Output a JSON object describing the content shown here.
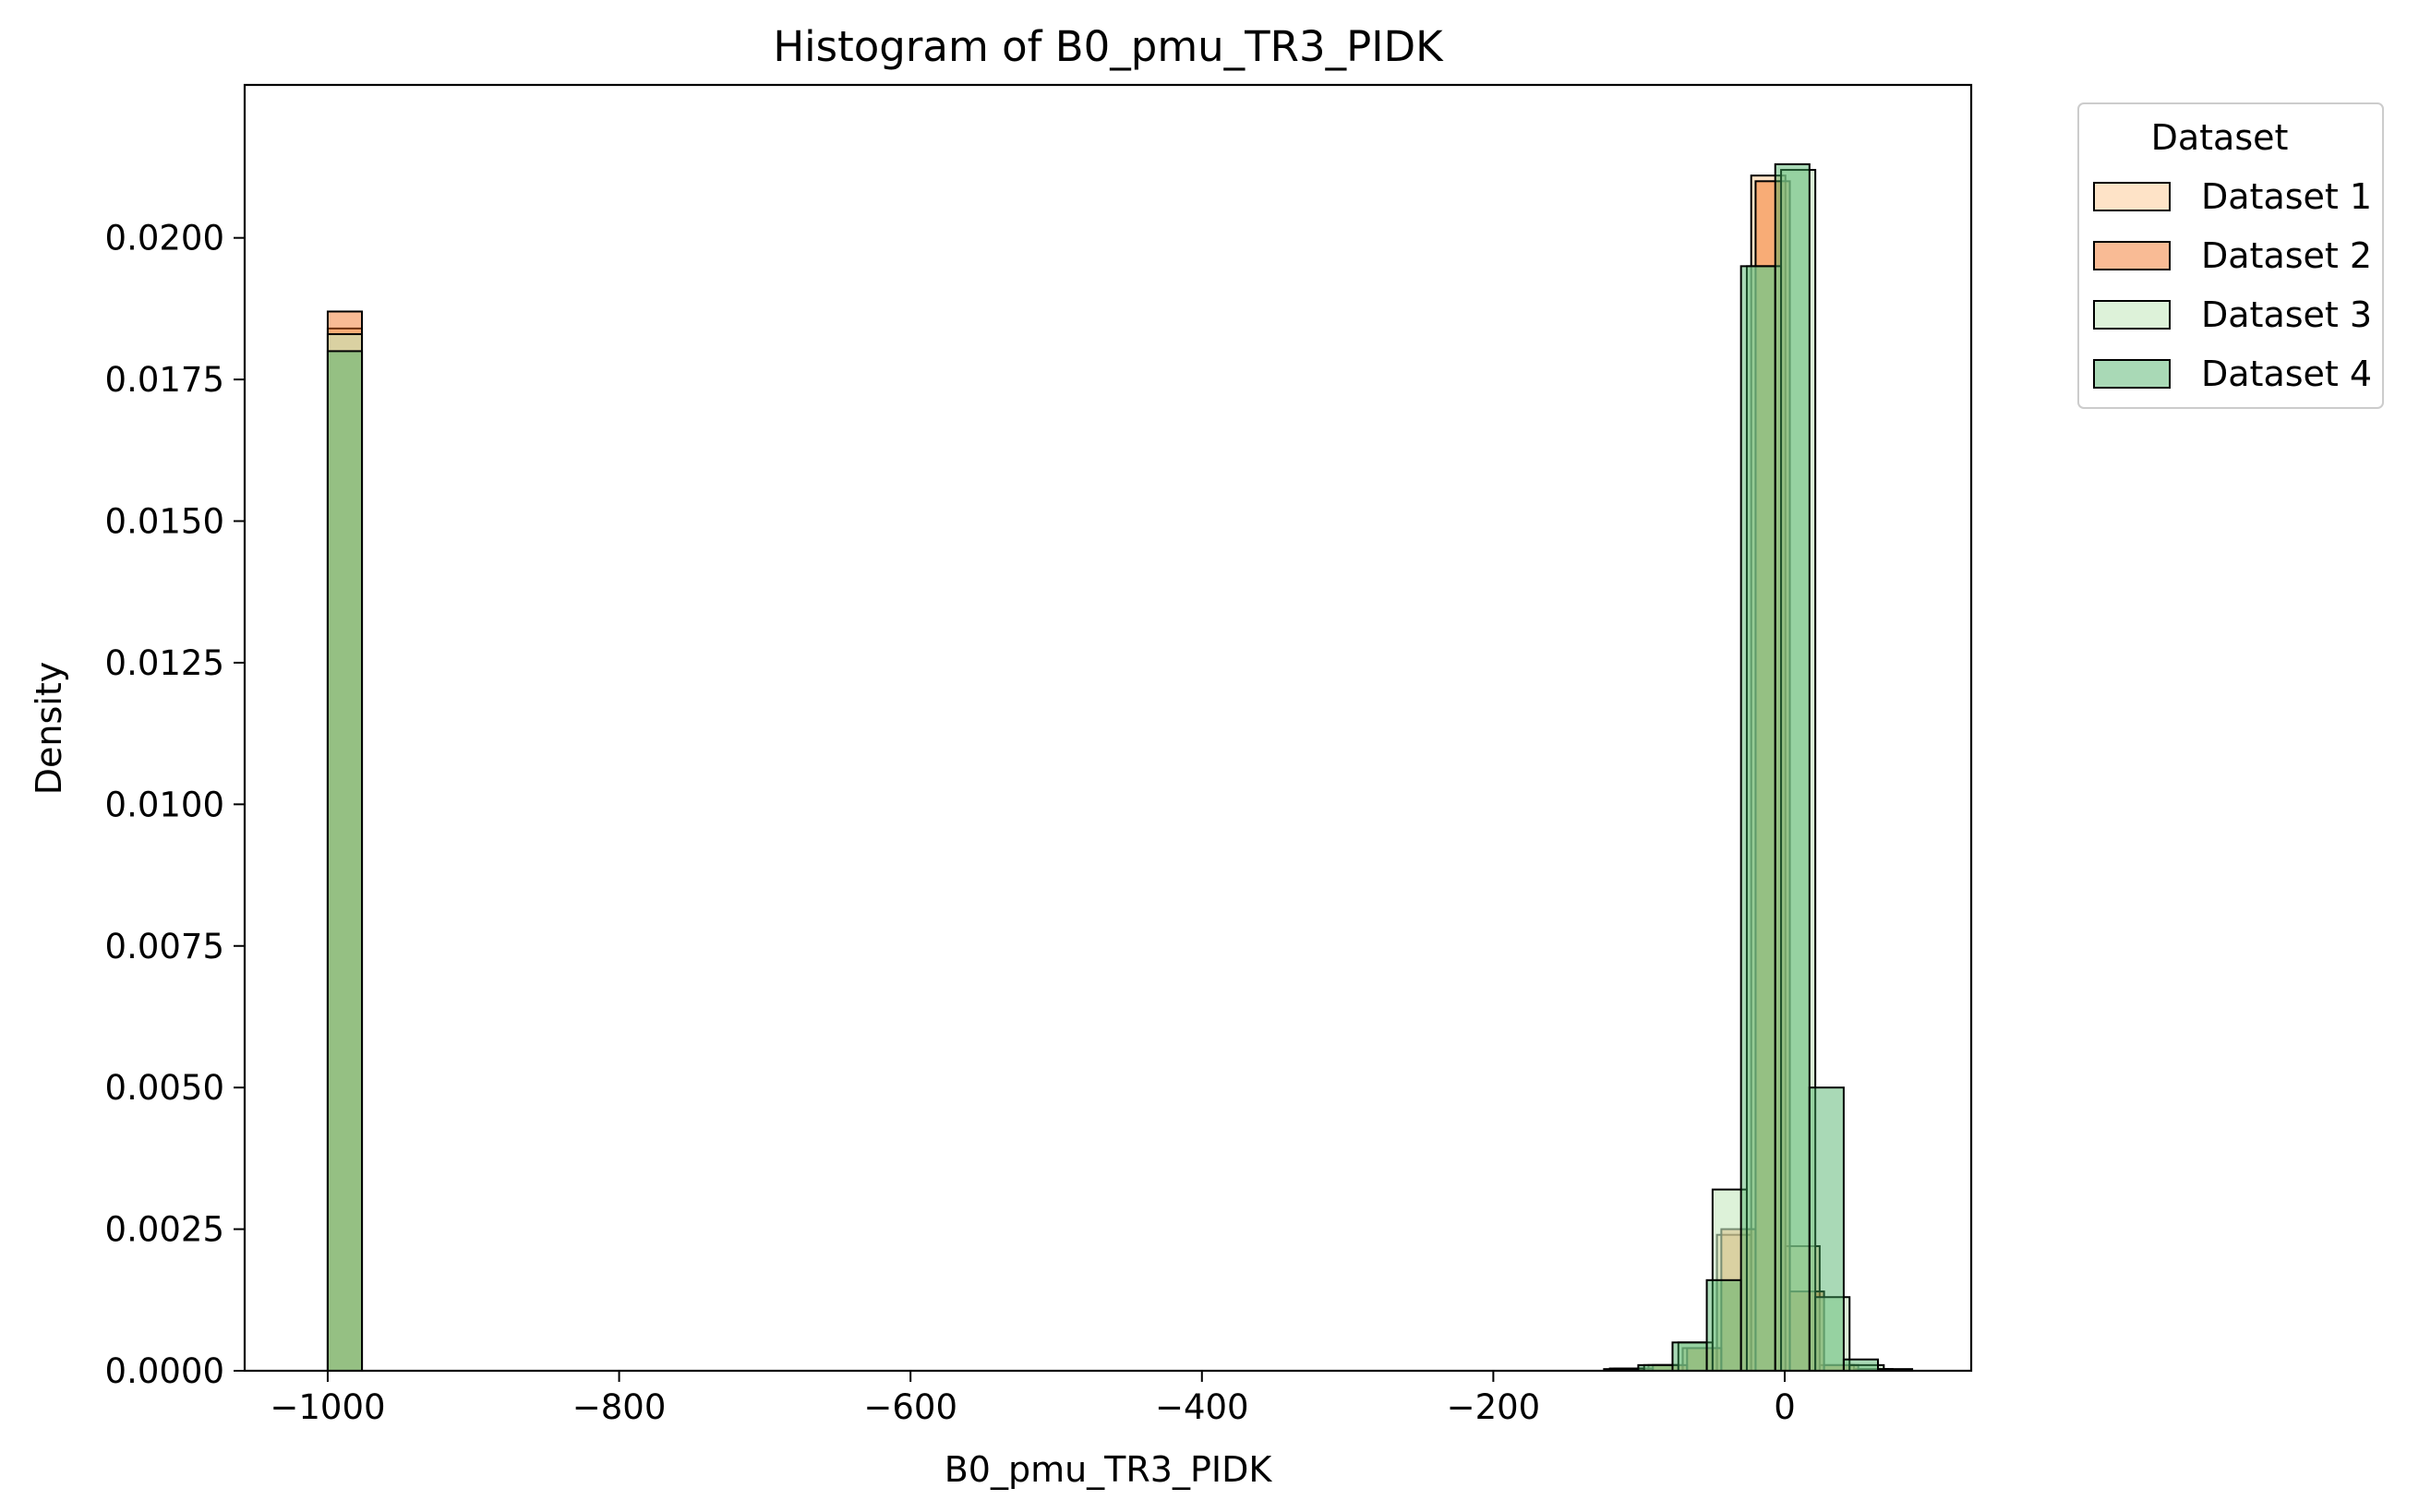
{
  "chart_data": {
    "type": "histogram",
    "title": "Histogram of B0_pmu_TR3_PIDK",
    "xlabel": "B0_pmu_TR3_PIDK",
    "ylabel": "Density",
    "xlim": [
      -1057,
      128
    ],
    "ylim": [
      0,
      0.0227
    ],
    "xticks": [
      -1000,
      -800,
      -600,
      -400,
      -200,
      0
    ],
    "xtick_labels": [
      "−1000",
      "−800",
      "−600",
      "−400",
      "−200",
      "0"
    ],
    "yticks": [
      0,
      0.0025,
      0.005,
      0.0075,
      0.01,
      0.0125,
      0.015,
      0.0175,
      0.02
    ],
    "ytick_labels": [
      "0.0000",
      "0.0025",
      "0.0050",
      "0.0075",
      "0.0100",
      "0.0125",
      "0.0150",
      "0.0175",
      "0.0200"
    ],
    "grid": false,
    "legend": {
      "title": "Dataset",
      "placement": "outside-top-right"
    },
    "series": [
      {
        "name": "Dataset 1",
        "color": "#fdd0a2",
        "alpha": 0.6,
        "bins": [
          {
            "x0": -1000,
            "x1": -976.5,
            "y": 0.0184
          },
          {
            "x0": -117,
            "x1": -93.5,
            "y": 4e-05
          },
          {
            "x0": -93.5,
            "x1": -70,
            "y": 0.0001
          },
          {
            "x0": -70,
            "x1": -46.5,
            "y": 0.0004
          },
          {
            "x0": -46.5,
            "x1": -23,
            "y": 0.0024
          },
          {
            "x0": -23,
            "x1": 0.5,
            "y": 0.0211
          },
          {
            "x0": 0.5,
            "x1": 24,
            "y": 0.0022
          },
          {
            "x0": 24,
            "x1": 47.5,
            "y": 0.0001
          },
          {
            "x0": 47.5,
            "x1": 71,
            "y": 3e-05
          }
        ]
      },
      {
        "name": "Dataset 2",
        "color": "#f16913",
        "alpha": 0.45,
        "bins": [
          {
            "x0": -1000,
            "x1": -976.5,
            "y": 0.0187
          },
          {
            "x0": -114,
            "x1": -90.5,
            "y": 4e-05
          },
          {
            "x0": -90.5,
            "x1": -67,
            "y": 0.0001
          },
          {
            "x0": -67,
            "x1": -43.5,
            "y": 0.0004
          },
          {
            "x0": -43.5,
            "x1": -20,
            "y": 0.0025
          },
          {
            "x0": -20,
            "x1": 3.5,
            "y": 0.021
          },
          {
            "x0": 3.5,
            "x1": 27,
            "y": 0.0014
          },
          {
            "x0": 27,
            "x1": 50.5,
            "y": 0.0001
          },
          {
            "x0": 50.5,
            "x1": 74,
            "y": 3e-05
          }
        ]
      },
      {
        "name": "Dataset 3",
        "color": "#c7e9c0",
        "alpha": 0.6,
        "bins": [
          {
            "x0": -1000,
            "x1": -976.5,
            "y": 0.0183
          },
          {
            "x0": -120,
            "x1": -96.5,
            "y": 4e-05
          },
          {
            "x0": -96.5,
            "x1": -73,
            "y": 0.0001
          },
          {
            "x0": -73,
            "x1": -49.5,
            "y": 0.0005
          },
          {
            "x0": -49.5,
            "x1": -26,
            "y": 0.0032
          },
          {
            "x0": -26,
            "x1": -2.5,
            "y": 0.0195
          },
          {
            "x0": -2.5,
            "x1": 21,
            "y": 0.0212
          },
          {
            "x0": 21,
            "x1": 44.5,
            "y": 0.0013
          },
          {
            "x0": 44.5,
            "x1": 68,
            "y": 0.0001
          }
        ]
      },
      {
        "name": "Dataset 4",
        "color": "#41ab5d",
        "alpha": 0.45,
        "bins": [
          {
            "x0": -1000,
            "x1": -976.5,
            "y": 0.018
          },
          {
            "x0": -124,
            "x1": -100.5,
            "y": 3e-05
          },
          {
            "x0": -100.5,
            "x1": -77,
            "y": 0.0001
          },
          {
            "x0": -77,
            "x1": -53.5,
            "y": 0.0005
          },
          {
            "x0": -53.5,
            "x1": -30,
            "y": 0.0016
          },
          {
            "x0": -30,
            "x1": -6.5,
            "y": 0.0195
          },
          {
            "x0": -6.5,
            "x1": 17,
            "y": 0.0213
          },
          {
            "x0": 17,
            "x1": 40.5,
            "y": 0.005
          },
          {
            "x0": 40.5,
            "x1": 64,
            "y": 0.0002
          },
          {
            "x0": 64,
            "x1": 87.5,
            "y": 3e-05
          }
        ]
      }
    ]
  }
}
